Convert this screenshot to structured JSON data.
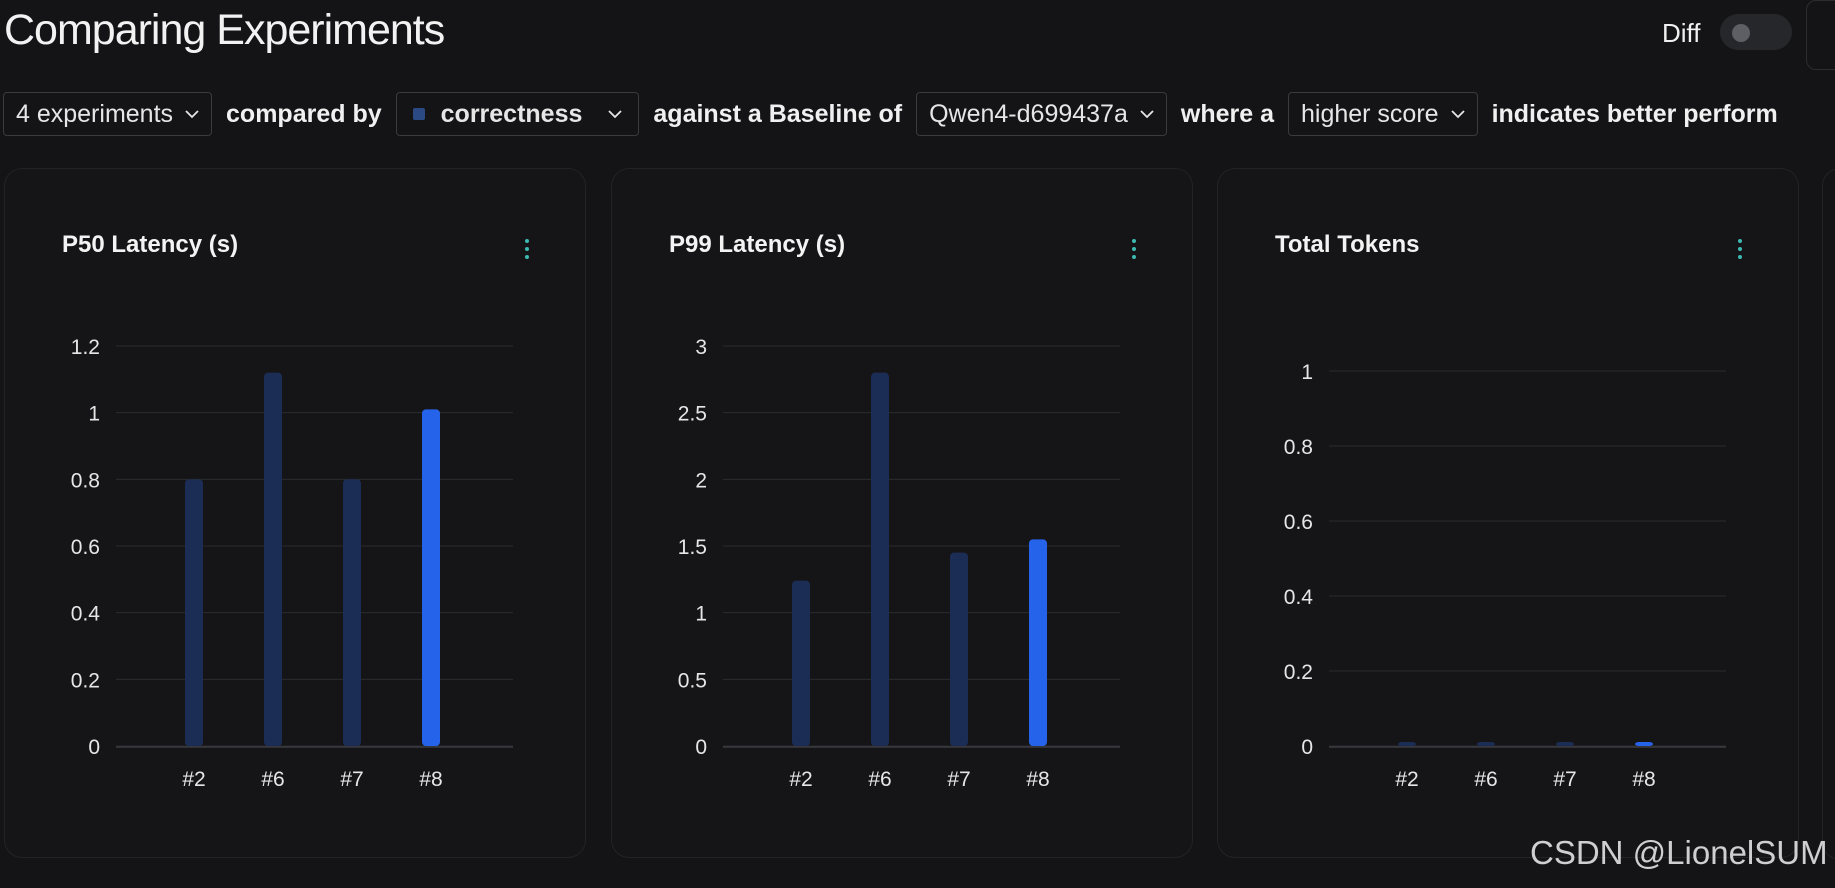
{
  "header": {
    "title": "Comparing Experiments",
    "diff_label": "Diff",
    "diff_enabled": false
  },
  "filters": {
    "experiments": "4 experiments",
    "compared_by_text": "compared by",
    "metric": "correctness",
    "baseline_text": "against a Baseline of",
    "baseline": "Qwen4-d699437a",
    "where_text": "where a",
    "direction": "higher score",
    "indicates_text": "indicates better perform"
  },
  "colors": {
    "bar_baseline": "#1c2d55",
    "bar_highlight": "#2563eb",
    "grid": "#2b2c30",
    "axis_text": "#e6e6e6",
    "kebab": "#3fb8b4"
  },
  "chart_data": [
    {
      "type": "bar",
      "title": "P50 Latency (s)",
      "categories": [
        "#2",
        "#6",
        "#7",
        "#8"
      ],
      "values": [
        0.8,
        1.12,
        0.8,
        1.01
      ],
      "highlight_index": 3,
      "yticks": [
        "0",
        "0.2",
        "0.4",
        "0.6",
        "0.8",
        "1",
        "1.2"
      ],
      "ylim": [
        0,
        1.2
      ],
      "xlabel": "",
      "ylabel": ""
    },
    {
      "type": "bar",
      "title": "P99 Latency (s)",
      "categories": [
        "#2",
        "#6",
        "#7",
        "#8"
      ],
      "values": [
        1.24,
        2.8,
        1.45,
        1.55
      ],
      "highlight_index": 3,
      "yticks": [
        "0",
        "0.5",
        "1",
        "1.5",
        "2",
        "2.5",
        "3"
      ],
      "ylim": [
        0,
        3
      ],
      "xlabel": "",
      "ylabel": ""
    },
    {
      "type": "bar",
      "title": "Total Tokens",
      "categories": [
        "#2",
        "#6",
        "#7",
        "#8"
      ],
      "values": [
        0,
        0,
        0,
        0
      ],
      "highlight_index": 3,
      "yticks": [
        "0",
        "0.2",
        "0.4",
        "0.6",
        "0.8",
        "1"
      ],
      "ylim": [
        0,
        1
      ],
      "xlabel": "",
      "ylabel": ""
    }
  ],
  "watermark": "CSDN @LionelSUM"
}
